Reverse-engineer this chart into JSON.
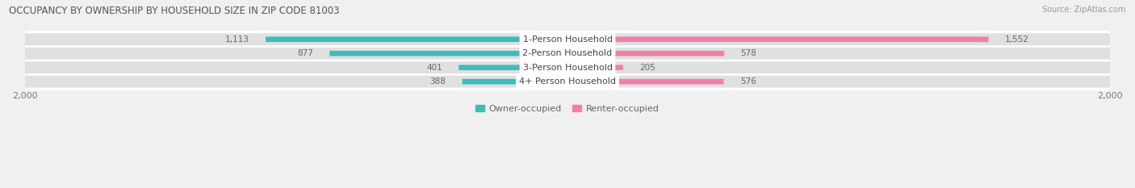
{
  "title": "OCCUPANCY BY OWNERSHIP BY HOUSEHOLD SIZE IN ZIP CODE 81003",
  "source": "Source: ZipAtlas.com",
  "categories": [
    "1-Person Household",
    "2-Person Household",
    "3-Person Household",
    "4+ Person Household"
  ],
  "owner_values": [
    1113,
    877,
    401,
    388
  ],
  "renter_values": [
    1552,
    578,
    205,
    576
  ],
  "owner_color": "#3DBCB8",
  "renter_color": "#F07FA8",
  "xlim": 2000,
  "background_color": "#f0f0f0",
  "row_bg_color": "#e0e0e0",
  "row_bg_color_alt": "#d8d8d8",
  "white_color": "#ffffff",
  "title_fontsize": 8.5,
  "label_fontsize": 8,
  "tick_fontsize": 8,
  "legend_fontsize": 8,
  "source_fontsize": 7,
  "value_fontsize": 7.5,
  "cat_fontsize": 8
}
